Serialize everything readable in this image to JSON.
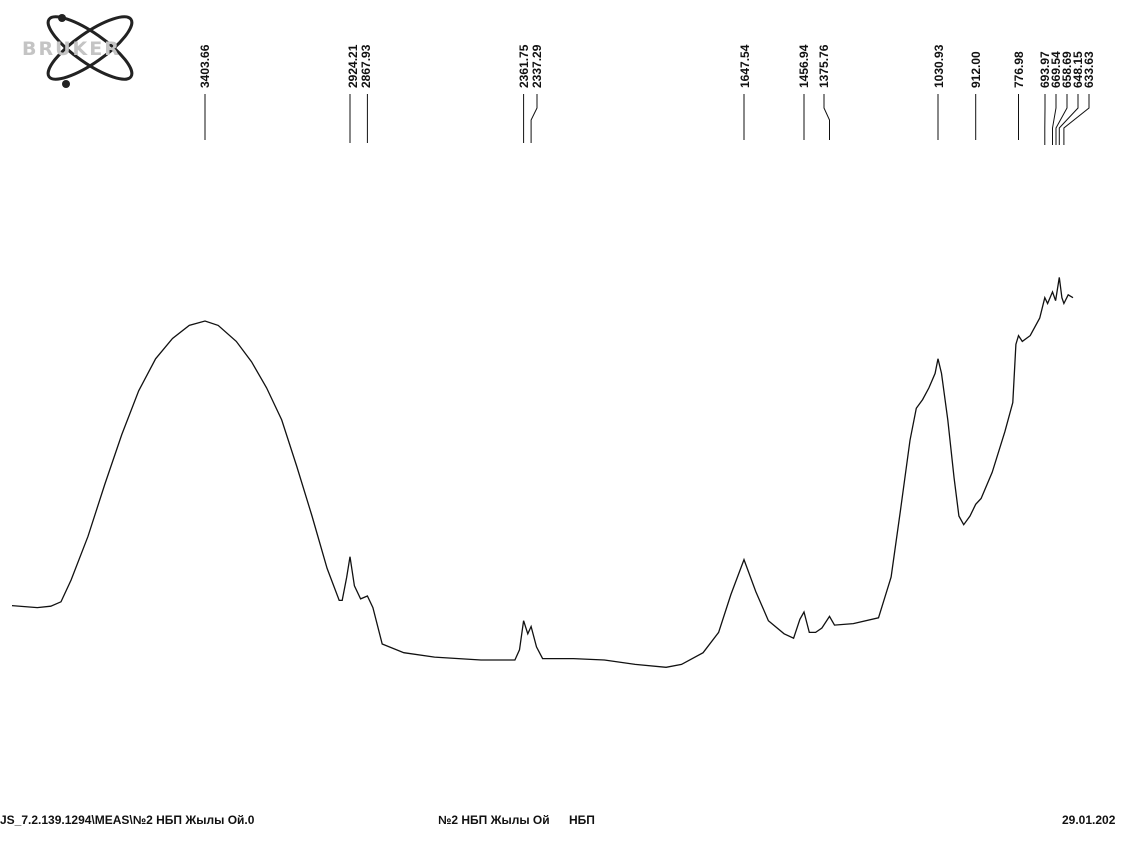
{
  "logo": {
    "text": "BRUKER",
    "icon": "atom-x-icon"
  },
  "footer": {
    "file_path": "JS_7.2.139.1294\\MEAS\\№2 НБП Жылы Ой.0",
    "sample_name": "№2 НБП Жылы Ой",
    "sample_code": "НБП",
    "date": "29.01.202"
  },
  "chart_data": {
    "type": "line",
    "title": "",
    "xlabel": "",
    "ylabel": "",
    "x_axis": "wavenumber (reversed)",
    "xlim": [
      4000,
      600
    ],
    "grid": false,
    "legend": "none",
    "line_color": "#111111",
    "peak_labels": [
      "3403.66",
      "2924.21",
      "2867.93",
      "2361.75",
      "2337.29",
      "1647.54",
      "1456.94",
      "1375.76",
      "1030.93",
      "912.00",
      "776.98",
      "693.97",
      "669.54",
      "658.69",
      "648.15",
      "633.63"
    ],
    "peaks": [
      3403.66,
      2924.21,
      2867.93,
      2361.75,
      2337.29,
      1647.54,
      1456.94,
      1375.76,
      1030.93,
      912.0,
      776.98,
      693.97,
      669.54,
      658.69,
      648.15,
      633.63
    ],
    "series": [
      {
        "points": [
          [
            3975,
            0.022
          ],
          [
            3900,
            0.015
          ],
          [
            3860,
            0.02
          ],
          [
            3830,
            0.035
          ],
          [
            3800,
            0.11
          ],
          [
            3750,
            0.26
          ],
          [
            3700,
            0.44
          ],
          [
            3650,
            0.61
          ],
          [
            3600,
            0.76
          ],
          [
            3550,
            0.87
          ],
          [
            3500,
            0.94
          ],
          [
            3450,
            0.985
          ],
          [
            3403.66,
            1.0
          ],
          [
            3360,
            0.985
          ],
          [
            3300,
            0.93
          ],
          [
            3250,
            0.86
          ],
          [
            3200,
            0.77
          ],
          [
            3150,
            0.66
          ],
          [
            3100,
            0.5
          ],
          [
            3050,
            0.33
          ],
          [
            3000,
            0.15
          ],
          [
            2960,
            0.04
          ],
          [
            2950,
            0.04
          ],
          [
            2935,
            0.12
          ],
          [
            2924.21,
            0.19
          ],
          [
            2910,
            0.09
          ],
          [
            2890,
            0.045
          ],
          [
            2867.93,
            0.055
          ],
          [
            2850,
            0.015
          ],
          [
            2820,
            -0.11
          ],
          [
            2750,
            -0.14
          ],
          [
            2650,
            -0.155
          ],
          [
            2500,
            -0.165
          ],
          [
            2390,
            -0.165
          ],
          [
            2375,
            -0.13
          ],
          [
            2361.75,
            -0.03
          ],
          [
            2348,
            -0.075
          ],
          [
            2337.29,
            -0.05
          ],
          [
            2320,
            -0.12
          ],
          [
            2300,
            -0.16
          ],
          [
            2200,
            -0.16
          ],
          [
            2100,
            -0.165
          ],
          [
            2000,
            -0.18
          ],
          [
            1900,
            -0.19
          ],
          [
            1850,
            -0.18
          ],
          [
            1780,
            -0.14
          ],
          [
            1730,
            -0.07
          ],
          [
            1690,
            0.06
          ],
          [
            1647.54,
            0.18
          ],
          [
            1610,
            0.07
          ],
          [
            1570,
            -0.03
          ],
          [
            1520,
            -0.075
          ],
          [
            1490,
            -0.09
          ],
          [
            1470,
            -0.025
          ],
          [
            1456.94,
            0.0
          ],
          [
            1440,
            -0.07
          ],
          [
            1420,
            -0.07
          ],
          [
            1400,
            -0.055
          ],
          [
            1375.76,
            -0.015
          ],
          [
            1360,
            -0.045
          ],
          [
            1300,
            -0.04
          ],
          [
            1220,
            -0.02
          ],
          [
            1180,
            0.12
          ],
          [
            1150,
            0.35
          ],
          [
            1120,
            0.59
          ],
          [
            1100,
            0.7
          ],
          [
            1080,
            0.73
          ],
          [
            1060,
            0.77
          ],
          [
            1040,
            0.82
          ],
          [
            1030.93,
            0.87
          ],
          [
            1020,
            0.82
          ],
          [
            1000,
            0.66
          ],
          [
            980,
            0.46
          ],
          [
            965,
            0.33
          ],
          [
            950,
            0.3
          ],
          [
            930,
            0.33
          ],
          [
            912.0,
            0.37
          ],
          [
            895,
            0.39
          ],
          [
            860,
            0.48
          ],
          [
            820,
            0.62
          ],
          [
            795,
            0.72
          ],
          [
            785,
            0.92
          ],
          [
            776.98,
            0.95
          ],
          [
            765,
            0.93
          ],
          [
            740,
            0.95
          ],
          [
            710,
            1.01
          ],
          [
            693.97,
            1.08
          ],
          [
            685,
            1.06
          ],
          [
            669.54,
            1.1
          ],
          [
            660,
            1.07
          ],
          [
            648.15,
            1.15
          ],
          [
            640,
            1.08
          ],
          [
            633.63,
            1.06
          ],
          [
            620,
            1.09
          ],
          [
            605,
            1.08
          ]
        ]
      }
    ]
  }
}
